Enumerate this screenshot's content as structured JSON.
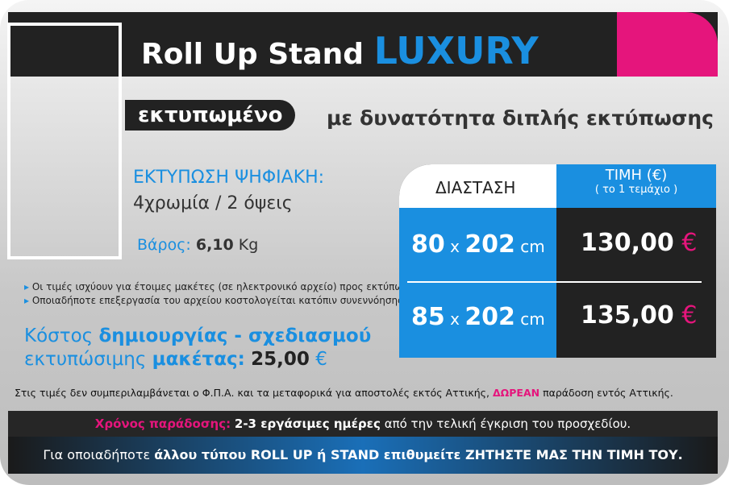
{
  "header": {
    "title": "Roll Up Stand",
    "highlight": "LUXURY"
  },
  "subtitle": {
    "badge": "εκτυπωμένο",
    "text": "με δυνατότητα διπλής εκτύπωσης"
  },
  "specs": {
    "print_label": "ΕΚΤΥΠΩΣΗ ΨΗΦΙΑΚΗ:",
    "print_value": "4χρωμία / 2 όψεις",
    "weight_label": "Βάρος:",
    "weight_value": "6,10",
    "weight_unit": "Kg"
  },
  "notes": [
    "Οι τιμές ισχύουν για έτοιμες μακέτες (σε ηλεκτρονικό αρχείο) προς εκτύπωση.",
    "Οποιαδήποτε επεξεργασία του αρχείου κοστολογείται κατόπιν συνεννόησης."
  ],
  "design": {
    "line1_a": "Κόστος",
    "line1_b": "δημιουργίας - σχεδιασμού",
    "line2_a": "εκτυπώσιμης",
    "line2_b": "μακέτας:",
    "price": "25,00",
    "currency": "€"
  },
  "table": {
    "header_size": "ΔΙΑΣΤΑΣΗ",
    "header_price": "ΤΙΜΗ (€)",
    "header_price_note": "( το 1 τεμάχιο )",
    "rows": [
      {
        "width": "80",
        "times": "x",
        "height": "202",
        "unit": "cm",
        "price": "130,00",
        "currency": "€"
      },
      {
        "width": "85",
        "times": "x",
        "height": "202",
        "unit": "cm",
        "price": "135,00",
        "currency": "€"
      }
    ]
  },
  "footer": {
    "vat_a": "Στις τιμές δεν συμπεριλαμβάνεται ο Φ.Π.Α. και τα μεταφορικά για αποστολές εκτός Αττικής,",
    "vat_free": "ΔΩΡΕΑΝ",
    "vat_b": "παράδοση εντός Αττικής.",
    "delivery_label": "Χρόνος παράδοσης:",
    "delivery_days": "2-3 εργάσιμες ημέρες",
    "delivery_rest": "από την τελική έγκριση του προσχεδίου.",
    "other_a": "Για οποιαδήποτε",
    "other_b": "άλλου τύπου ROLL UP ή STAND επιθυμείτε ΖΗΤΗΣΤΕ ΜΑΣ ΤΗΝ ΤΙΜΗ ΤΟΥ."
  }
}
